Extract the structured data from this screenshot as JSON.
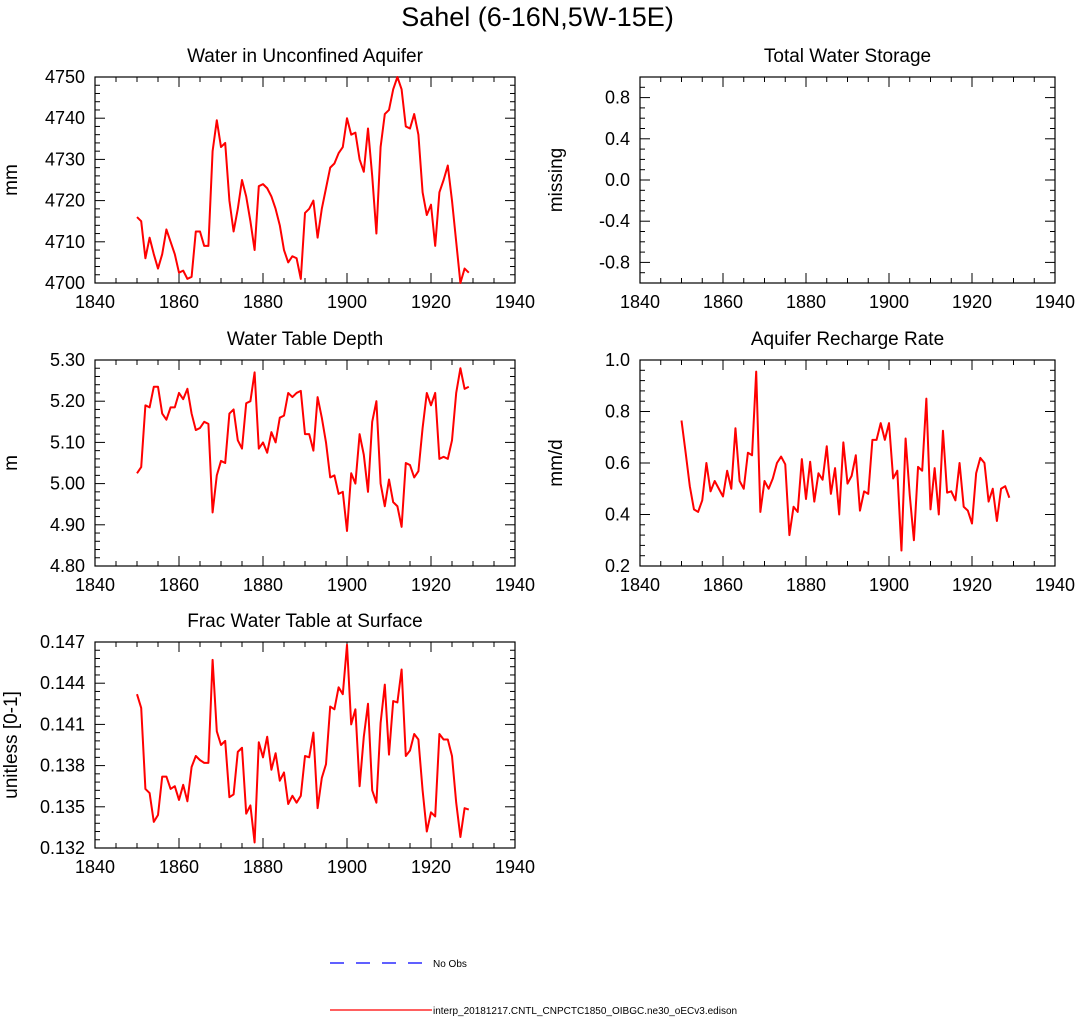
{
  "figure": {
    "title": "Sahel (6-16N,5W-15E)"
  },
  "colors": {
    "model_line": "#ff0000",
    "obs_line": "#0000ff",
    "axis": "#000000"
  },
  "legend": {
    "obs_label": "No Obs",
    "model_label": "interp_20181217.CNTL_CNPCTC1850_OIBGC.ne30_oECv3.edison"
  },
  "chart_data": [
    {
      "id": "water-unconfined-aquifer",
      "type": "line",
      "title": "Water in Unconfined Aquifer",
      "xlabel": "",
      "ylabel": "mm",
      "xlim": [
        1840,
        1940
      ],
      "ylim": [
        4700,
        4750
      ],
      "xticks": [
        1840,
        1860,
        1880,
        1900,
        1920,
        1940
      ],
      "yticks": [
        4700,
        4710,
        4720,
        4730,
        4740,
        4750
      ],
      "ytick_labels": [
        "4700",
        "4710",
        "4720",
        "4730",
        "4740",
        "4750"
      ],
      "y_minor_step": 2,
      "series": [
        {
          "name": "interp_20181217.CNTL_CNPCTC1850_OIBGC.ne30_oECv3.edison",
          "color": "#ff0000",
          "x0": 1850,
          "dx": 1,
          "values": [
            4716,
            4715,
            4706,
            4711,
            4707,
            4703.5,
            4707,
            4713,
            4710,
            4707,
            4702.5,
            4703,
            4701,
            4701.5,
            4712.5,
            4712.5,
            4709,
            4709,
            4732,
            4739.5,
            4733,
            4734,
            4720,
            4712.5,
            4718,
            4725,
            4721,
            4715,
            4708,
            4723.5,
            4724,
            4723,
            4721,
            4718,
            4714,
            4708,
            4705,
            4706.5,
            4706,
            4701,
            4717,
            4718,
            4720,
            4711,
            4718,
            4723,
            4728,
            4729,
            4731.5,
            4733,
            4740,
            4736,
            4736.5,
            4730,
            4727,
            4737.5,
            4726,
            4712,
            4733,
            4741,
            4742,
            4747,
            4750,
            4747,
            4738,
            4737.5,
            4741,
            4736,
            4722,
            4716.5,
            4719,
            4709,
            4722,
            4725,
            4728.5,
            4720,
            4710,
            4700,
            4703.5,
            4702.5
          ]
        }
      ]
    },
    {
      "id": "total-water-storage",
      "type": "line",
      "title": "Total Water Storage",
      "xlabel": "",
      "ylabel": "missing",
      "xlim": [
        1840,
        1940
      ],
      "ylim": [
        -1,
        1
      ],
      "xticks": [
        1840,
        1860,
        1880,
        1900,
        1920,
        1940
      ],
      "yticks": [
        -0.8,
        -0.4,
        0,
        0.4,
        0.8
      ],
      "ytick_labels": [
        "-0.8",
        "-0.4",
        "0.0",
        "0.4",
        "0.8"
      ],
      "y_minor_step": 0.1,
      "series": []
    },
    {
      "id": "water-table-depth",
      "type": "line",
      "title": "Water Table Depth",
      "xlabel": "",
      "ylabel": "m",
      "xlim": [
        1840,
        1940
      ],
      "ylim": [
        4.8,
        5.3
      ],
      "xticks": [
        1840,
        1860,
        1880,
        1900,
        1920,
        1940
      ],
      "yticks": [
        4.8,
        4.9,
        5.0,
        5.1,
        5.2,
        5.3
      ],
      "ytick_labels": [
        "4.80",
        "4.90",
        "5.00",
        "5.10",
        "5.20",
        "5.30"
      ],
      "y_minor_step": 0.02,
      "series": [
        {
          "name": "interp_20181217.CNTL_CNPCTC1850_OIBGC.ne30_oECv3.edison",
          "color": "#ff0000",
          "x0": 1850,
          "dx": 1,
          "values": [
            5.025,
            5.04,
            5.19,
            5.185,
            5.235,
            5.235,
            5.17,
            5.155,
            5.185,
            5.185,
            5.22,
            5.205,
            5.23,
            5.17,
            5.13,
            5.135,
            5.15,
            5.145,
            4.93,
            5.02,
            5.055,
            5.05,
            5.17,
            5.18,
            5.105,
            5.085,
            5.195,
            5.2,
            5.27,
            5.085,
            5.1,
            5.075,
            5.125,
            5.1,
            5.16,
            5.165,
            5.22,
            5.21,
            5.22,
            5.225,
            5.12,
            5.12,
            5.08,
            5.21,
            5.16,
            5.1,
            5.015,
            5.02,
            4.975,
            4.98,
            4.885,
            5.025,
            5.0,
            5.12,
            5.07,
            4.98,
            5.15,
            5.2,
            5.0,
            4.945,
            5.01,
            4.955,
            4.945,
            4.895,
            5.05,
            5.045,
            5.015,
            5.03,
            5.135,
            5.22,
            5.19,
            5.22,
            5.06,
            5.065,
            5.06,
            5.105,
            5.22,
            5.28,
            5.23,
            5.235
          ]
        }
      ]
    },
    {
      "id": "aquifer-recharge-rate",
      "type": "line",
      "title": "Aquifer Recharge Rate",
      "xlabel": "",
      "ylabel": "mm/d",
      "xlim": [
        1840,
        1940
      ],
      "ylim": [
        0.2,
        1.0
      ],
      "xticks": [
        1840,
        1860,
        1880,
        1900,
        1920,
        1940
      ],
      "yticks": [
        0.2,
        0.4,
        0.6,
        0.8,
        1.0
      ],
      "ytick_labels": [
        "0.2",
        "0.4",
        "0.6",
        "0.8",
        "1.0"
      ],
      "y_minor_step": 0.04,
      "series": [
        {
          "name": "interp_20181217.CNTL_CNPCTC1850_OIBGC.ne30_oECv3.edison",
          "color": "#ff0000",
          "x0": 1850,
          "dx": 1,
          "values": [
            0.765,
            0.64,
            0.51,
            0.42,
            0.41,
            0.455,
            0.6,
            0.49,
            0.53,
            0.5,
            0.47,
            0.57,
            0.5,
            0.735,
            0.53,
            0.5,
            0.64,
            0.63,
            0.955,
            0.41,
            0.53,
            0.5,
            0.54,
            0.6,
            0.625,
            0.595,
            0.32,
            0.43,
            0.41,
            0.615,
            0.46,
            0.605,
            0.45,
            0.56,
            0.535,
            0.665,
            0.48,
            0.58,
            0.4,
            0.68,
            0.52,
            0.55,
            0.63,
            0.415,
            0.49,
            0.48,
            0.69,
            0.69,
            0.755,
            0.69,
            0.755,
            0.54,
            0.57,
            0.26,
            0.695,
            0.475,
            0.3,
            0.585,
            0.57,
            0.85,
            0.42,
            0.58,
            0.4,
            0.725,
            0.485,
            0.49,
            0.455,
            0.6,
            0.43,
            0.415,
            0.365,
            0.56,
            0.62,
            0.6,
            0.45,
            0.5,
            0.375,
            0.5,
            0.51,
            0.465
          ]
        }
      ]
    },
    {
      "id": "frac-water-table-surface",
      "type": "line",
      "title": "Frac Water Table at Surface",
      "xlabel": "",
      "ylabel": "unitless [0-1]",
      "xlim": [
        1840,
        1940
      ],
      "ylim": [
        0.132,
        0.147
      ],
      "xticks": [
        1840,
        1860,
        1880,
        1900,
        1920,
        1940
      ],
      "yticks": [
        0.132,
        0.135,
        0.138,
        0.141,
        0.144,
        0.147
      ],
      "ytick_labels": [
        "0.132",
        "0.135",
        "0.138",
        "0.141",
        "0.144",
        "0.147"
      ],
      "y_minor_step": 0.0006,
      "series": [
        {
          "name": "interp_20181217.CNTL_CNPCTC1850_OIBGC.ne30_oECv3.edison",
          "color": "#ff0000",
          "x0": 1850,
          "dx": 1,
          "values": [
            0.1432,
            0.1422,
            0.1363,
            0.136,
            0.1339,
            0.1344,
            0.1372,
            0.1372,
            0.1363,
            0.1365,
            0.1355,
            0.1366,
            0.1354,
            0.1379,
            0.1387,
            0.1384,
            0.1382,
            0.1382,
            0.1457,
            0.1405,
            0.1395,
            0.1398,
            0.1357,
            0.1359,
            0.139,
            0.1393,
            0.1345,
            0.1351,
            0.1324,
            0.1397,
            0.1386,
            0.1401,
            0.1377,
            0.1389,
            0.1369,
            0.1375,
            0.1352,
            0.1358,
            0.1353,
            0.1358,
            0.1387,
            0.1386,
            0.1404,
            0.1349,
            0.1371,
            0.1381,
            0.1423,
            0.1421,
            0.1437,
            0.1432,
            0.1468,
            0.141,
            0.1421,
            0.1365,
            0.1401,
            0.1425,
            0.1362,
            0.1353,
            0.1411,
            0.1439,
            0.1388,
            0.1427,
            0.1426,
            0.145,
            0.1387,
            0.1391,
            0.1403,
            0.1399,
            0.1362,
            0.1332,
            0.1346,
            0.1343,
            0.1403,
            0.1399,
            0.1399,
            0.1387,
            0.1353,
            0.1328,
            0.1349,
            0.1348
          ]
        }
      ]
    }
  ]
}
